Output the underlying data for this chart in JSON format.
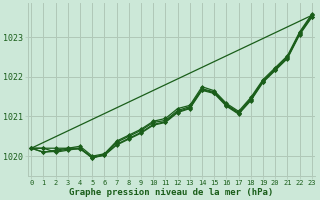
{
  "background_color": "#cce8d8",
  "plot_bg_color": "#cce8d8",
  "grid_color": "#b0c8b8",
  "line_color": "#1a5e1a",
  "marker_color": "#1a5e1a",
  "ylim": [
    1019.5,
    1023.85
  ],
  "xlim": [
    -0.3,
    23.3
  ],
  "yticks": [
    1020,
    1021,
    1022,
    1023
  ],
  "xticks": [
    0,
    1,
    2,
    3,
    4,
    5,
    6,
    7,
    8,
    9,
    10,
    11,
    12,
    13,
    14,
    15,
    16,
    17,
    18,
    19,
    20,
    21,
    22,
    23
  ],
  "xlabel": "Graphe pression niveau de la mer (hPa)",
  "series": [
    [
      1020.2,
      1020.2,
      1020.1,
      1020.15,
      1020.2,
      1019.95,
      1020.05,
      1020.35,
      1020.5,
      1020.65,
      1020.85,
      1020.9,
      1021.15,
      1021.25,
      1021.7,
      1021.62,
      1021.3,
      1021.1,
      1021.45,
      1021.9,
      1022.2,
      1022.5,
      1023.1,
      1023.55
    ],
    [
      1020.2,
      1020.1,
      1020.15,
      1020.2,
      1020.2,
      1019.97,
      1020.03,
      1020.3,
      1020.45,
      1020.6,
      1020.8,
      1020.87,
      1021.12,
      1021.22,
      1021.68,
      1021.6,
      1021.28,
      1021.08,
      1021.42,
      1021.88,
      1022.18,
      1022.48,
      1023.08,
      1023.52
    ],
    [
      1020.2,
      1020.1,
      1020.12,
      1020.18,
      1020.18,
      1019.96,
      1020.02,
      1020.28,
      1020.43,
      1020.58,
      1020.78,
      1020.85,
      1021.1,
      1021.2,
      1021.66,
      1021.58,
      1021.26,
      1021.06,
      1021.4,
      1021.86,
      1022.16,
      1022.46,
      1023.06,
      1023.5
    ],
    [
      1020.2,
      1020.2,
      1020.2,
      1020.2,
      1020.25,
      1020.0,
      1020.06,
      1020.38,
      1020.53,
      1020.68,
      1020.88,
      1020.95,
      1021.2,
      1021.28,
      1021.75,
      1021.65,
      1021.33,
      1021.13,
      1021.48,
      1021.93,
      1022.23,
      1022.53,
      1023.13,
      1023.58
    ]
  ],
  "series_straight": [
    1020.2,
    1023.55
  ]
}
